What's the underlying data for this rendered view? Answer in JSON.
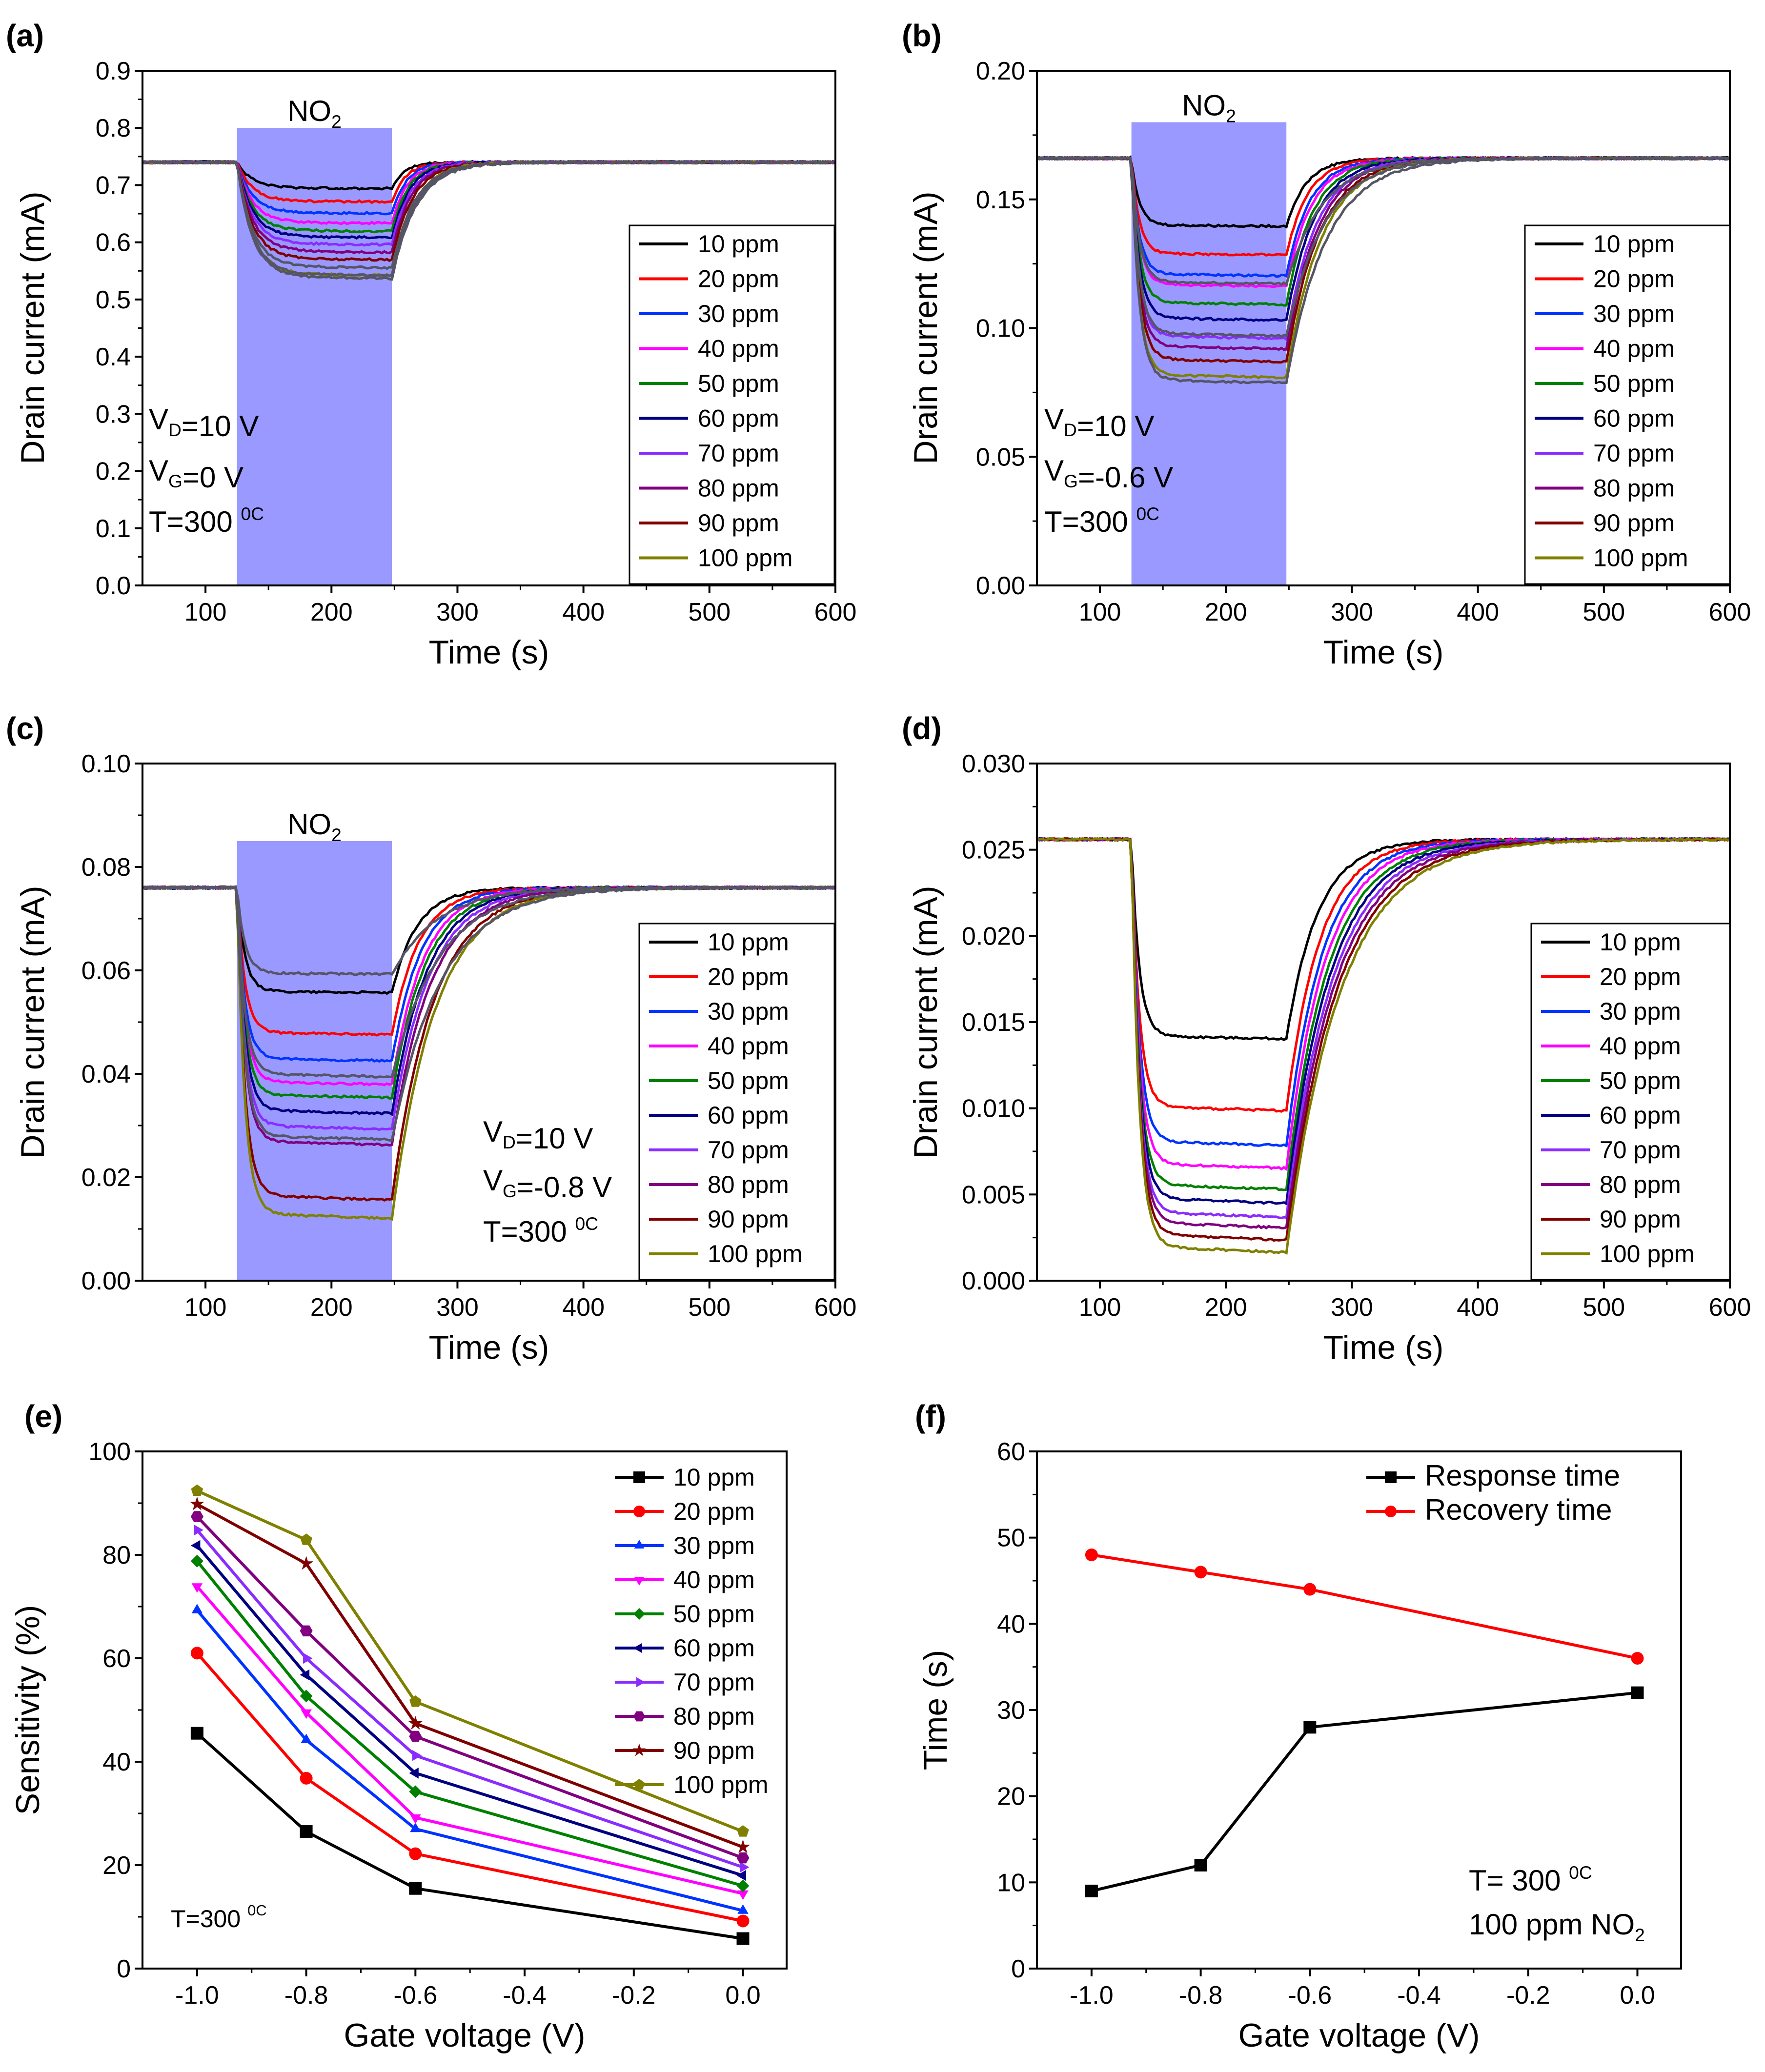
{
  "colors": {
    "10 ppm": "#000000",
    "20 ppm": "#ff0000",
    "30 ppm": "#0033ff",
    "40 ppm": "#ff00ff",
    "50 ppm": "#008000",
    "60 ppm": "#000080",
    "70 ppm": "#8b2cff",
    "80 ppm": "#800080",
    "90 ppm": "#800000",
    "100 ppm": "#808000",
    "gas_box": "#9999ff",
    "gray_trace": "#555566"
  },
  "chart_data": [
    {
      "id": "a",
      "label": "(a)",
      "type": "line",
      "xlabel": "Time (s)",
      "ylabel": "Drain current (mA)",
      "xlim": [
        50,
        600
      ],
      "ylim": [
        0,
        0.9
      ],
      "xticks": [
        100,
        200,
        300,
        400,
        500,
        600
      ],
      "yticks": [
        0.0,
        0.1,
        0.2,
        0.3,
        0.4,
        0.5,
        0.6,
        0.7,
        0.8,
        0.9
      ],
      "ytick_decimals": 1,
      "gas_window": {
        "label": "NO",
        "sub": "2",
        "x_start": 125,
        "x_end": 248,
        "y_top": 0.8
      },
      "annotations": [
        "V_D=10 V",
        "V_G=0 V",
        "T=300 ^0C"
      ],
      "baseline": 0.74,
      "recovery_tau": 10,
      "series_names": [
        "10 ppm",
        "20 ppm",
        "30 ppm",
        "40 ppm",
        "50 ppm",
        "60 ppm",
        "70 ppm",
        "80 ppm",
        "90 ppm",
        "100 ppm"
      ],
      "steady_values": [
        0.695,
        0.672,
        0.652,
        0.635,
        0.621,
        0.61,
        0.598,
        0.585,
        0.572,
        0.545
      ],
      "drawn_values": [
        0.558,
        0.545,
        0.54
      ]
    },
    {
      "id": "b",
      "label": "(b)",
      "type": "line",
      "xlabel": "Time (s)",
      "ylabel": "Drain current (mA)",
      "xlim": [
        50,
        600
      ],
      "ylim": [
        0,
        0.2
      ],
      "xticks": [
        100,
        200,
        300,
        400,
        500,
        600
      ],
      "yticks": [
        0.0,
        0.05,
        0.1,
        0.15,
        0.2
      ],
      "ytick_decimals": 2,
      "gas_window": {
        "label": "NO",
        "sub": "2",
        "x_start": 125,
        "x_end": 248,
        "y_top": 0.18
      },
      "annotations": [
        "V_D=10 V",
        "V_G=-0.6 V",
        "T=300 ^0C"
      ],
      "baseline": 0.166,
      "recovery_tau": 16,
      "series_names": [
        "10 ppm",
        "20 ppm",
        "30 ppm",
        "40 ppm",
        "50 ppm",
        "60 ppm",
        "70 ppm",
        "80 ppm",
        "90 ppm",
        "100 ppm"
      ],
      "steady_values": [
        0.14,
        0.129,
        0.121,
        0.117,
        0.11,
        0.104,
        0.097,
        0.093,
        0.088,
        0.082
      ],
      "drawn_values": [
        0.118,
        0.098,
        0.08
      ]
    },
    {
      "id": "c",
      "label": "(c)",
      "type": "line",
      "xlabel": "Time (s)",
      "ylabel": "Drain current (mA)",
      "xlim": [
        50,
        600
      ],
      "ylim": [
        0,
        0.1
      ],
      "xticks": [
        100,
        200,
        300,
        400,
        500,
        600
      ],
      "yticks": [
        0.0,
        0.02,
        0.04,
        0.06,
        0.08,
        0.1
      ],
      "ytick_decimals": 2,
      "gas_window": {
        "label": "NO",
        "sub": "2",
        "x_start": 125,
        "x_end": 248,
        "y_top": 0.085
      },
      "annotations": [
        "V_D=10 V",
        "V_G=-0.8 V",
        "T=300 ^0C"
      ],
      "baseline": 0.076,
      "recovery_tau": 20,
      "series_names": [
        "10 ppm",
        "20 ppm",
        "30 ppm",
        "40 ppm",
        "50 ppm",
        "60 ppm",
        "70 ppm",
        "80 ppm",
        "90 ppm",
        "100 ppm"
      ],
      "steady_values": [
        0.056,
        0.048,
        0.043,
        0.0385,
        0.036,
        0.033,
        0.03,
        0.027,
        0.0165,
        0.013
      ],
      "drawn_values": [
        0.0595,
        0.04,
        0.028
      ]
    },
    {
      "id": "d",
      "label": "(d)",
      "type": "line",
      "xlabel": "Time (s)",
      "ylabel": "Drain current (mA)",
      "xlim": [
        50,
        600
      ],
      "ylim": [
        0,
        0.03
      ],
      "xticks": [
        100,
        200,
        300,
        400,
        500,
        600
      ],
      "yticks": [
        0.0,
        0.005,
        0.01,
        0.015,
        0.02,
        0.025,
        0.03
      ],
      "ytick_decimals": 3,
      "gas_window": null,
      "annotations": [],
      "baseline": 0.0256,
      "recovery_tau": 25,
      "series_names": [
        "10 ppm",
        "20 ppm",
        "30 ppm",
        "40 ppm",
        "50 ppm",
        "60 ppm",
        "70 ppm",
        "80 ppm",
        "90 ppm",
        "100 ppm"
      ],
      "steady_values": [
        0.0142,
        0.0101,
        0.0081,
        0.0068,
        0.0056,
        0.0048,
        0.004,
        0.0034,
        0.0027,
        0.002
      ],
      "drawn_values": []
    },
    {
      "id": "e",
      "label": "(e)",
      "type": "line",
      "xlabel": "Gate voltage (V)",
      "ylabel": "Sensitivity (%)",
      "xlim": [
        -1.1,
        0.08
      ],
      "ylim": [
        0,
        100
      ],
      "xticks": [
        -1.0,
        -0.8,
        -0.6,
        -0.4,
        -0.2,
        0.0
      ],
      "yticks": [
        0,
        20,
        40,
        60,
        80,
        100
      ],
      "ytick_decimals": 0,
      "xtick_decimals": 1,
      "x": [
        -1.0,
        -0.8,
        -0.6,
        0.0
      ],
      "annotations": [
        "T=300 ^0C"
      ],
      "series": [
        {
          "name": "10 ppm",
          "marker": "square",
          "values": [
            45.5,
            26.5,
            15.5,
            5.8
          ]
        },
        {
          "name": "20 ppm",
          "marker": "circle",
          "values": [
            61.0,
            36.8,
            22.2,
            9.2
          ]
        },
        {
          "name": "30 ppm",
          "marker": "triangle-up",
          "values": [
            69.3,
            44.2,
            27.0,
            11.2
          ]
        },
        {
          "name": "40 ppm",
          "marker": "triangle-down",
          "values": [
            73.9,
            49.5,
            29.2,
            14.5
          ]
        },
        {
          "name": "50 ppm",
          "marker": "diamond",
          "values": [
            78.8,
            52.7,
            34.2,
            16.0
          ]
        },
        {
          "name": "60 ppm",
          "marker": "triangle-left",
          "values": [
            81.8,
            56.8,
            37.8,
            18.0
          ]
        },
        {
          "name": "70 ppm",
          "marker": "triangle-right",
          "values": [
            84.8,
            60.0,
            41.2,
            19.6
          ]
        },
        {
          "name": "80 ppm",
          "marker": "hexagon",
          "values": [
            87.4,
            65.3,
            44.9,
            21.4
          ]
        },
        {
          "name": "90 ppm",
          "marker": "star",
          "values": [
            89.8,
            78.3,
            47.4,
            23.5
          ]
        },
        {
          "name": "100 ppm",
          "marker": "pentagon",
          "values": [
            92.4,
            82.9,
            51.6,
            26.5
          ]
        }
      ]
    },
    {
      "id": "f",
      "label": "(f)",
      "type": "line",
      "xlabel": "Gate voltage (V)",
      "ylabel": "Time (s)",
      "xlim": [
        -1.1,
        0.08
      ],
      "ylim": [
        0,
        60
      ],
      "xticks": [
        -1.0,
        -0.8,
        -0.6,
        -0.4,
        -0.2,
        0.0
      ],
      "yticks": [
        0,
        10,
        20,
        30,
        40,
        50,
        60
      ],
      "ytick_decimals": 0,
      "xtick_decimals": 1,
      "x": [
        -1.0,
        -0.8,
        -0.6,
        0.0
      ],
      "annotations": [
        "T= 300 ^0C",
        "100 ppm NO_2"
      ],
      "series": [
        {
          "name": "Response time",
          "marker": "square",
          "color": "#000000",
          "values": [
            9,
            12,
            28,
            32
          ]
        },
        {
          "name": "Recovery time",
          "marker": "circle",
          "color": "#ff0000",
          "values": [
            48,
            46,
            44,
            36
          ]
        }
      ]
    }
  ]
}
